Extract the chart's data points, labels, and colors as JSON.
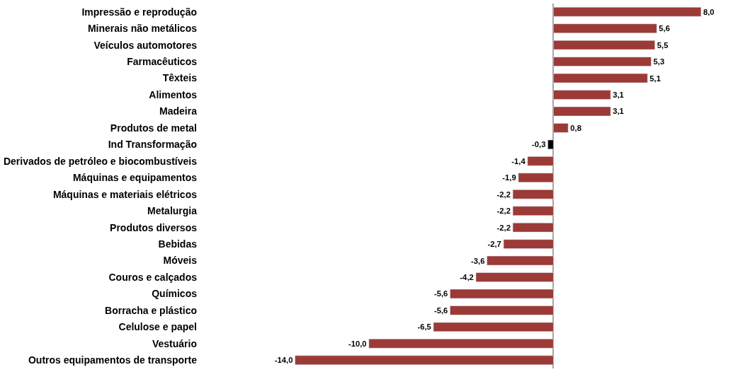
{
  "chart_data": {
    "type": "bar",
    "orientation": "horizontal",
    "categories": [
      "Impressão e reprodução",
      "Minerais não metálicos",
      "Veículos automotores",
      "Farmacêuticos",
      "Têxteis",
      "Alimentos",
      "Madeira",
      "Produtos de metal",
      "Ind Transformação",
      "Derivados de petróleo e biocombustíveis",
      "Máquinas e equipamentos",
      "Máquinas e materiais elétricos",
      "Metalurgia",
      "Produtos diversos",
      "Bebidas",
      "Móveis",
      "Couros e calçados",
      "Químicos",
      "Borracha e plástico",
      "Celulose e papel",
      "Vestuário",
      "Outros equipamentos de transporte"
    ],
    "values": [
      8.0,
      5.6,
      5.5,
      5.3,
      5.1,
      3.1,
      3.1,
      0.8,
      -0.3,
      -1.4,
      -1.9,
      -2.2,
      -2.2,
      -2.2,
      -2.7,
      -3.6,
      -4.2,
      -5.6,
      -5.6,
      -6.5,
      -10.0,
      -14.0
    ],
    "value_labels": [
      "8,0",
      "5,6",
      "5,5",
      "5,3",
      "5,1",
      "3,1",
      "3,1",
      "0,8",
      "-0,3",
      "-1,4",
      "-1,9",
      "-2,2",
      "-2,2",
      "-2,2",
      "-2,7",
      "-3,6",
      "-4,2",
      "-5,6",
      "-5,6",
      "-6,5",
      "-10,0",
      "-14,0"
    ],
    "colors": [
      "#9b3a37",
      "#9b3a37",
      "#9b3a37",
      "#9b3a37",
      "#9b3a37",
      "#9b3a37",
      "#9b3a37",
      "#9b3a37",
      "#000000",
      "#9b3a37",
      "#9b3a37",
      "#9b3a37",
      "#9b3a37",
      "#9b3a37",
      "#9b3a37",
      "#9b3a37",
      "#9b3a37",
      "#9b3a37",
      "#9b3a37",
      "#9b3a37",
      "#9b3a37",
      "#9b3a37"
    ],
    "legend": false
  }
}
